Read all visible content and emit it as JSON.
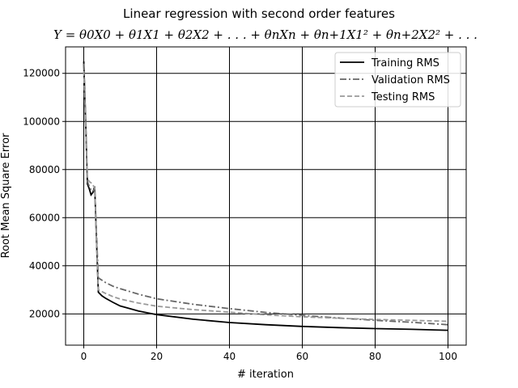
{
  "chart_data": {
    "type": "line",
    "title": "Linear regression with second order features",
    "subtitle": "Y = θ0X0 + θ1X1 + θ2X2 + . . . + θnXn + θn+1X1² + θn+2X2² + . . .",
    "xlabel": "# iteration",
    "ylabel": "Root Mean Square Error",
    "xlim": [
      -5,
      105
    ],
    "ylim": [
      7000,
      131000
    ],
    "xticks": [
      0,
      20,
      40,
      60,
      80,
      100
    ],
    "yticks": [
      20000,
      40000,
      60000,
      80000,
      100000,
      120000
    ],
    "xtick_labels": [
      "0",
      "20",
      "40",
      "60",
      "80",
      "100"
    ],
    "ytick_labels": [
      "20000",
      "40000",
      "60000",
      "80000",
      "100000",
      "120000"
    ],
    "grid": true,
    "legend_position": "top-right",
    "series": [
      {
        "name": "Training RMS",
        "color": "#000000",
        "style": "solid",
        "x": [
          0,
          0.5,
          1,
          1.5,
          2,
          2.5,
          3,
          3.5,
          4,
          5,
          6,
          8,
          10,
          15,
          20,
          30,
          40,
          50,
          60,
          70,
          80,
          90,
          100
        ],
        "y": [
          125000,
          100000,
          74000,
          72000,
          69500,
          70500,
          73000,
          50000,
          29000,
          27500,
          26500,
          24800,
          23300,
          21200,
          19700,
          17800,
          16400,
          15500,
          14800,
          14300,
          13900,
          13600,
          13200
        ]
      },
      {
        "name": "Validation RMS",
        "color": "#666666",
        "style": "dashdot",
        "x": [
          0,
          0.5,
          1,
          1.5,
          2,
          2.5,
          3,
          3.5,
          4,
          6,
          8,
          10,
          15,
          20,
          30,
          40,
          50,
          60,
          70,
          80,
          90,
          100
        ],
        "y": [
          124000,
          102000,
          75000,
          73000,
          71500,
          71000,
          72000,
          53000,
          35000,
          33000,
          31500,
          30500,
          28200,
          26300,
          24000,
          22200,
          20600,
          19400,
          18300,
          17300,
          16500,
          15500
        ]
      },
      {
        "name": "Testing RMS",
        "color": "#999999",
        "style": "dashed",
        "x": [
          0,
          0.5,
          1,
          1.5,
          2,
          2.5,
          3,
          3.5,
          4,
          6,
          8,
          10,
          15,
          20,
          30,
          40,
          50,
          60,
          70,
          80,
          90,
          100
        ],
        "y": [
          121000,
          98000,
          76500,
          75000,
          74500,
          73500,
          72500,
          50000,
          30000,
          28500,
          27200,
          26200,
          24500,
          23200,
          21800,
          20700,
          19600,
          18800,
          18200,
          17700,
          17300,
          16900
        ]
      }
    ]
  }
}
